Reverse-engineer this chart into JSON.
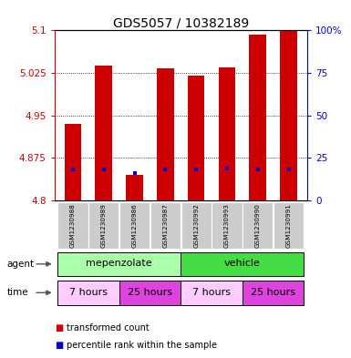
{
  "title": "GDS5057 / 10382189",
  "samples": [
    "GSM1230988",
    "GSM1230989",
    "GSM1230986",
    "GSM1230987",
    "GSM1230992",
    "GSM1230993",
    "GSM1230990",
    "GSM1230991"
  ],
  "bar_tops": [
    4.935,
    5.038,
    4.845,
    5.033,
    5.02,
    5.035,
    5.093,
    5.1
  ],
  "bar_bottoms": [
    4.8,
    4.8,
    4.8,
    4.8,
    4.8,
    4.8,
    4.8,
    4.8
  ],
  "percentile_values": [
    4.855,
    4.855,
    4.848,
    4.855,
    4.855,
    4.857,
    4.855,
    4.855
  ],
  "bar_color": "#cc0000",
  "percentile_color": "#0000cc",
  "ylim": [
    4.8,
    5.1
  ],
  "yticks": [
    4.8,
    4.875,
    4.95,
    5.025,
    5.1
  ],
  "right_yticks": [
    0,
    25,
    50,
    75,
    100
  ],
  "right_ytick_labels": [
    "0",
    "25",
    "50",
    "75",
    "100%"
  ],
  "grid_color": "black",
  "agent_row": [
    {
      "label": "mepenzolate",
      "start": 0,
      "end": 4,
      "color": "#aaffaa"
    },
    {
      "label": "vehicle",
      "start": 4,
      "end": 8,
      "color": "#44dd44"
    }
  ],
  "time_row": [
    {
      "label": "7 hours",
      "start": 0,
      "end": 2,
      "color": "#ffccff"
    },
    {
      "label": "25 hours",
      "start": 2,
      "end": 4,
      "color": "#dd44dd"
    },
    {
      "label": "7 hours",
      "start": 4,
      "end": 6,
      "color": "#ffccff"
    },
    {
      "label": "25 hours",
      "start": 6,
      "end": 8,
      "color": "#dd44dd"
    }
  ],
  "legend_items": [
    {
      "label": "transformed count",
      "color": "#cc0000"
    },
    {
      "label": "percentile rank within the sample",
      "color": "#0000cc"
    }
  ],
  "bar_width": 0.55,
  "ylabel_color": "#cc0000",
  "right_ylabel_color": "#0000cc"
}
